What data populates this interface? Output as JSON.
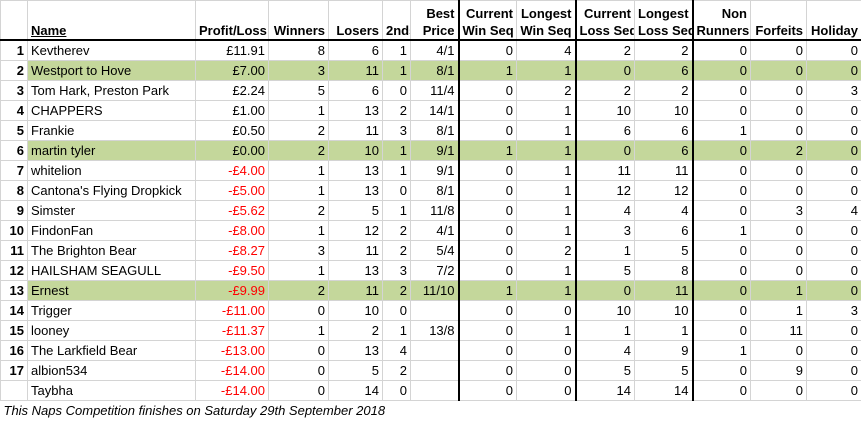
{
  "table": {
    "columns": [
      [
        "Name"
      ],
      [
        "Profit/Loss"
      ],
      [
        "Winners"
      ],
      [
        "Losers"
      ],
      [
        "2nds"
      ],
      [
        "Best",
        "Price"
      ],
      [
        "Current",
        "Win Seq"
      ],
      [
        "Longest",
        "Win Seq"
      ],
      [
        "Current",
        "Loss Seq"
      ],
      [
        "Longest",
        "Loss Seq"
      ],
      [
        "Non",
        "Runners"
      ],
      [
        "Forfeits"
      ],
      [
        "Holiday"
      ]
    ],
    "rows": [
      {
        "rank": 1,
        "highlight": false,
        "cells": [
          "Kevtherev",
          "£11.91",
          8,
          6,
          1,
          "4/1",
          0,
          4,
          2,
          2,
          0,
          0,
          0
        ]
      },
      {
        "rank": 2,
        "highlight": true,
        "cells": [
          "Westport to Hove",
          "£7.00",
          3,
          11,
          1,
          "8/1",
          1,
          1,
          0,
          6,
          0,
          0,
          0
        ]
      },
      {
        "rank": 3,
        "highlight": false,
        "cells": [
          "Tom Hark, Preston Park",
          "£2.24",
          5,
          6,
          0,
          "11/4",
          0,
          2,
          2,
          2,
          0,
          0,
          3
        ]
      },
      {
        "rank": 4,
        "highlight": false,
        "cells": [
          "CHAPPERS",
          "£1.00",
          1,
          13,
          2,
          "14/1",
          0,
          1,
          10,
          10,
          0,
          0,
          0
        ]
      },
      {
        "rank": 5,
        "highlight": false,
        "cells": [
          "Frankie",
          "£0.50",
          2,
          11,
          3,
          "8/1",
          0,
          1,
          6,
          6,
          1,
          0,
          0
        ]
      },
      {
        "rank": 6,
        "highlight": true,
        "cells": [
          "martin tyler",
          "£0.00",
          2,
          10,
          1,
          "9/1",
          1,
          1,
          0,
          6,
          0,
          2,
          0
        ]
      },
      {
        "rank": 7,
        "highlight": false,
        "cells": [
          "whitelion",
          "-£4.00",
          1,
          13,
          1,
          "9/1",
          0,
          1,
          11,
          11,
          0,
          0,
          0
        ]
      },
      {
        "rank": 8,
        "highlight": false,
        "cells": [
          "Cantona's Flying Dropkick",
          "-£5.00",
          1,
          13,
          0,
          "8/1",
          0,
          1,
          12,
          12,
          0,
          0,
          0
        ]
      },
      {
        "rank": 9,
        "highlight": false,
        "cells": [
          "Simster",
          "-£5.62",
          2,
          5,
          1,
          "11/8",
          0,
          1,
          4,
          4,
          0,
          3,
          4
        ]
      },
      {
        "rank": 10,
        "highlight": false,
        "cells": [
          "FindonFan",
          "-£8.00",
          1,
          12,
          2,
          "4/1",
          0,
          1,
          3,
          6,
          1,
          0,
          0
        ]
      },
      {
        "rank": 11,
        "highlight": false,
        "cells": [
          "The Brighton Bear",
          "-£8.27",
          3,
          11,
          2,
          "5/4",
          0,
          2,
          1,
          5,
          0,
          0,
          0
        ]
      },
      {
        "rank": 12,
        "highlight": false,
        "cells": [
          "HAILSHAM SEAGULL",
          "-£9.50",
          1,
          13,
          3,
          "7/2",
          0,
          1,
          5,
          8,
          0,
          0,
          0
        ]
      },
      {
        "rank": 13,
        "highlight": true,
        "cells": [
          "Ernest",
          "-£9.99",
          2,
          11,
          2,
          "11/10",
          1,
          1,
          0,
          11,
          0,
          1,
          0
        ]
      },
      {
        "rank": 14,
        "highlight": false,
        "cells": [
          "Trigger",
          "-£11.00",
          0,
          10,
          0,
          null,
          0,
          0,
          10,
          10,
          0,
          1,
          3
        ]
      },
      {
        "rank": 15,
        "highlight": false,
        "cells": [
          "looney",
          "-£11.37",
          1,
          2,
          1,
          "13/8",
          0,
          1,
          1,
          1,
          0,
          11,
          0
        ]
      },
      {
        "rank": 16,
        "highlight": false,
        "cells": [
          "The Larkfield Bear",
          "-£13.00",
          0,
          13,
          4,
          null,
          0,
          0,
          4,
          9,
          1,
          0,
          0
        ]
      },
      {
        "rank": 17,
        "highlight": false,
        "cells": [
          "albion534",
          "-£14.00",
          0,
          5,
          2,
          null,
          0,
          0,
          5,
          5,
          0,
          9,
          0
        ]
      },
      {
        "rank": null,
        "highlight": false,
        "cells": [
          "Taybha",
          "-£14.00",
          0,
          14,
          0,
          null,
          0,
          0,
          14,
          14,
          0,
          0,
          0
        ]
      }
    ],
    "footer": "This Naps Competition finishes on Saturday 29th September 2018"
  }
}
